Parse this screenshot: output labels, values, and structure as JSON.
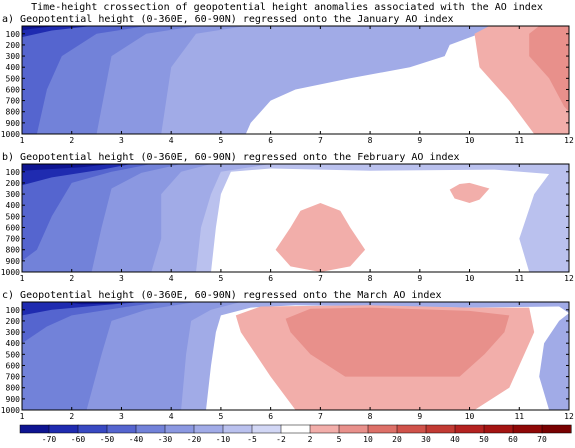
{
  "title": "Time-height crossection of geopotential height anomalies associated with the AO index",
  "chart_data": [
    {
      "type": "heatmap",
      "title": "a) Geopotential height (0-360E, 60-90N) regressed onto the January AO index",
      "x_ticks": [
        1,
        2,
        3,
        4,
        5,
        6,
        7,
        8,
        9,
        10,
        11,
        12
      ],
      "y_ticks": [
        100,
        200,
        300,
        400,
        500,
        600,
        700,
        800,
        900,
        1000
      ],
      "xlim": [
        1,
        12
      ],
      "ylim": [
        1000,
        30
      ],
      "y_reversed": true,
      "filled_contours": [
        {
          "level": -5,
          "points": [
            [
              1,
              30
            ],
            [
              10.5,
              30
            ],
            [
              10.2,
              100
            ],
            [
              9.6,
              200
            ],
            [
              9.5,
              300
            ],
            [
              8.8,
              400
            ],
            [
              7.6,
              500
            ],
            [
              6.5,
              600
            ],
            [
              6.0,
              700
            ],
            [
              5.8,
              800
            ],
            [
              5.6,
              900
            ],
            [
              5.5,
              1000
            ],
            [
              1,
              1000
            ]
          ]
        },
        {
          "level": -10,
          "points": [
            [
              1,
              30
            ],
            [
              5.5,
              30
            ],
            [
              4.5,
              100
            ],
            [
              4.0,
              400
            ],
            [
              3.8,
              1000
            ],
            [
              1,
              1000
            ]
          ]
        },
        {
          "level": -20,
          "points": [
            [
              1,
              30
            ],
            [
              4.5,
              30
            ],
            [
              3.5,
              100
            ],
            [
              2.8,
              300
            ],
            [
              2.5,
              1000
            ],
            [
              1,
              1000
            ]
          ]
        },
        {
          "level": -30,
          "points": [
            [
              1,
              30
            ],
            [
              3.5,
              30
            ],
            [
              2.5,
              100
            ],
            [
              1.8,
              300
            ],
            [
              1.5,
              600
            ],
            [
              1.3,
              1000
            ],
            [
              1,
              1000
            ]
          ]
        },
        {
          "level": -40,
          "points": [
            [
              1,
              30
            ],
            [
              2.4,
              30
            ],
            [
              1.6,
              70
            ],
            [
              1,
              130
            ]
          ]
        },
        {
          "level": -50,
          "points": [
            [
              1,
              30
            ],
            [
              1.7,
              30
            ],
            [
              1.2,
              55
            ],
            [
              1,
              70
            ]
          ]
        },
        {
          "level": 2,
          "points": [
            [
              10.4,
              30
            ],
            [
              12,
              30
            ],
            [
              12,
              1000
            ],
            [
              11.3,
              1000
            ],
            [
              10.8,
              700
            ],
            [
              10.2,
              400
            ],
            [
              10.1,
              100
            ]
          ]
        },
        {
          "level": 5,
          "points": [
            [
              11.4,
              30
            ],
            [
              12,
              30
            ],
            [
              12,
              800
            ],
            [
              11.9,
              750
            ],
            [
              11.6,
              500
            ],
            [
              11.2,
              300
            ],
            [
              11.2,
              100
            ]
          ]
        }
      ]
    },
    {
      "type": "heatmap",
      "title": "b) Geopotential height (0-360E, 60-90N) regressed onto the February AO index",
      "x_ticks": [
        1,
        2,
        3,
        4,
        5,
        6,
        7,
        8,
        9,
        10,
        11,
        12
      ],
      "y_ticks": [
        100,
        200,
        300,
        400,
        500,
        600,
        700,
        800,
        900,
        1000
      ],
      "xlim": [
        1,
        12
      ],
      "ylim": [
        1000,
        30
      ],
      "y_reversed": true,
      "filled_contours": [
        {
          "level": -2,
          "points": [
            [
              1,
              30
            ],
            [
              12,
              30
            ],
            [
              12,
              1000
            ],
            [
              11.2,
              1000
            ],
            [
              11.0,
              700
            ],
            [
              11.3,
              300
            ],
            [
              11.6,
              120
            ],
            [
              10.5,
              80
            ],
            [
              8,
              90
            ],
            [
              6,
              70
            ],
            [
              5.2,
              100
            ],
            [
              5.0,
              300
            ],
            [
              4.9,
              600
            ],
            [
              4.8,
              1000
            ],
            [
              1,
              1000
            ]
          ]
        },
        {
          "level": -5,
          "points": [
            [
              1,
              30
            ],
            [
              6,
              30
            ],
            [
              5.0,
              100
            ],
            [
              4.8,
              300
            ],
            [
              4.6,
              600
            ],
            [
              4.5,
              1000
            ],
            [
              1,
              1000
            ]
          ]
        },
        {
          "level": -10,
          "points": [
            [
              1,
              30
            ],
            [
              4.8,
              30
            ],
            [
              4.2,
              100
            ],
            [
              3.8,
              300
            ],
            [
              3.8,
              700
            ],
            [
              3.6,
              1000
            ],
            [
              1,
              1000
            ]
          ]
        },
        {
          "level": -20,
          "points": [
            [
              1,
              30
            ],
            [
              4.2,
              30
            ],
            [
              3.4,
              110
            ],
            [
              2.8,
              250
            ],
            [
              2.6,
              600
            ],
            [
              2.4,
              1000
            ],
            [
              1,
              1000
            ]
          ]
        },
        {
          "level": -30,
          "points": [
            [
              1,
              30
            ],
            [
              3.6,
              30
            ],
            [
              2.8,
              100
            ],
            [
              2.0,
              200
            ],
            [
              1.6,
              500
            ],
            [
              1.3,
              800
            ],
            [
              1,
              900
            ]
          ]
        },
        {
          "level": -40,
          "points": [
            [
              1,
              30
            ],
            [
              3.2,
              30
            ],
            [
              2.6,
              80
            ],
            [
              1.6,
              150
            ],
            [
              1,
              220
            ]
          ]
        },
        {
          "level": -50,
          "points": [
            [
              1,
              30
            ],
            [
              2.8,
              30
            ],
            [
              2.2,
              60
            ],
            [
              1,
              90
            ]
          ]
        },
        {
          "level": 2,
          "points": [
            [
              7.0,
              380
            ],
            [
              7.4,
              450
            ],
            [
              7.6,
              600
            ],
            [
              7.9,
              800
            ],
            [
              7.6,
              950
            ],
            [
              7.0,
              1000
            ],
            [
              6.4,
              950
            ],
            [
              6.1,
              800
            ],
            [
              6.4,
              600
            ],
            [
              6.6,
              450
            ]
          ]
        },
        {
          "level": 2,
          "points": [
            [
              10.0,
              200
            ],
            [
              10.4,
              250
            ],
            [
              10.2,
              350
            ],
            [
              10.0,
              380
            ],
            [
              9.7,
              340
            ],
            [
              9.6,
              260
            ],
            [
              9.8,
              210
            ]
          ]
        }
      ]
    },
    {
      "type": "heatmap",
      "title": "c) Geopotential height (0-360E, 60-90N) regressed onto the March AO index",
      "x_ticks": [
        1,
        2,
        3,
        4,
        5,
        6,
        7,
        8,
        9,
        10,
        11,
        12
      ],
      "y_ticks": [
        100,
        200,
        300,
        400,
        500,
        600,
        700,
        800,
        900,
        1000
      ],
      "xlim": [
        1,
        12
      ],
      "ylim": [
        1000,
        30
      ],
      "y_reversed": true,
      "filled_contours": [
        {
          "level": -5,
          "points": [
            [
              1,
              30
            ],
            [
              12,
              30
            ],
            [
              12,
              1000
            ],
            [
              11.6,
              1000
            ],
            [
              11.4,
              700
            ],
            [
              11.5,
              400
            ],
            [
              11.8,
              200
            ],
            [
              12,
              130
            ],
            [
              11.8,
              70
            ],
            [
              10,
              80
            ],
            [
              6.5,
              60
            ],
            [
              5.6,
              80
            ],
            [
              5.0,
              150
            ],
            [
              4.9,
              300
            ],
            [
              4.8,
              600
            ],
            [
              4.7,
              1000
            ],
            [
              1,
              1000
            ]
          ]
        },
        {
          "level": -10,
          "points": [
            [
              1,
              30
            ],
            [
              5.4,
              30
            ],
            [
              4.8,
              100
            ],
            [
              4.4,
              200
            ],
            [
              4.3,
              500
            ],
            [
              4.2,
              1000
            ],
            [
              1,
              1000
            ]
          ]
        },
        {
          "level": -20,
          "points": [
            [
              1,
              30
            ],
            [
              4.5,
              30
            ],
            [
              3.5,
              100
            ],
            [
              2.8,
              200
            ],
            [
              2.6,
              500
            ],
            [
              2.3,
              1000
            ],
            [
              1,
              1000
            ]
          ]
        },
        {
          "level": -30,
          "points": [
            [
              1,
              30
            ],
            [
              3.8,
              30
            ],
            [
              3.0,
              80
            ],
            [
              2.0,
              150
            ],
            [
              1.5,
              250
            ],
            [
              1,
              400
            ]
          ]
        },
        {
          "level": -40,
          "points": [
            [
              1,
              30
            ],
            [
              3.4,
              30
            ],
            [
              2.6,
              60
            ],
            [
              1.6,
              100
            ],
            [
              1,
              150
            ]
          ]
        },
        {
          "level": -50,
          "points": [
            [
              1.8,
              30
            ],
            [
              3.2,
              30
            ],
            [
              2.8,
              45
            ],
            [
              2.2,
              50
            ]
          ]
        },
        {
          "level": 2,
          "points": [
            [
              5.8,
              70
            ],
            [
              8,
              60
            ],
            [
              10,
              80
            ],
            [
              11.2,
              80
            ],
            [
              11.3,
              300
            ],
            [
              11.0,
              600
            ],
            [
              10.8,
              800
            ],
            [
              10.1,
              1000
            ],
            [
              6.5,
              1000
            ],
            [
              6.0,
              700
            ],
            [
              5.4,
              300
            ],
            [
              5.3,
              150
            ]
          ]
        },
        {
          "level": 5,
          "points": [
            [
              6.8,
              90
            ],
            [
              8,
              80
            ],
            [
              10,
              110
            ],
            [
              10.8,
              150
            ],
            [
              10.7,
              300
            ],
            [
              10.3,
              500
            ],
            [
              9.8,
              700
            ],
            [
              7.5,
              700
            ],
            [
              6.8,
              500
            ],
            [
              6.4,
              300
            ],
            [
              6.3,
              180
            ]
          ]
        }
      ]
    }
  ],
  "colorbar": {
    "labels": [
      "-70",
      "-60",
      "-50",
      "-40",
      "-30",
      "-20",
      "-10",
      "-5",
      "-2",
      "2",
      "5",
      "10",
      "20",
      "30",
      "40",
      "50",
      "60",
      "70"
    ],
    "levels": [
      -70,
      -60,
      -50,
      -40,
      -30,
      -20,
      -10,
      -5,
      -2,
      2,
      5,
      10,
      20,
      30,
      40,
      50,
      60,
      70
    ],
    "colors": [
      "#0e1491",
      "#1f2bb0",
      "#3849c2",
      "#5565cf",
      "#7282d9",
      "#8b98e1",
      "#a1abe7",
      "#bac1ee",
      "#d2d7f5",
      "#ffffff",
      "#f2aeaa",
      "#e8908b",
      "#dd7068",
      "#d0524a",
      "#c23a33",
      "#b42220",
      "#a41412",
      "#8f0807",
      "#780101"
    ]
  },
  "fill_colors": {
    "-50": "#0e1491",
    "-40": "#1f2bb0",
    "-30": "#5565cf",
    "-20": "#7282d9",
    "-10": "#8b98e1",
    "-5": "#a1abe7",
    "-2": "#bac1ee",
    "2": "#f2aeaa",
    "5": "#e8908b"
  }
}
